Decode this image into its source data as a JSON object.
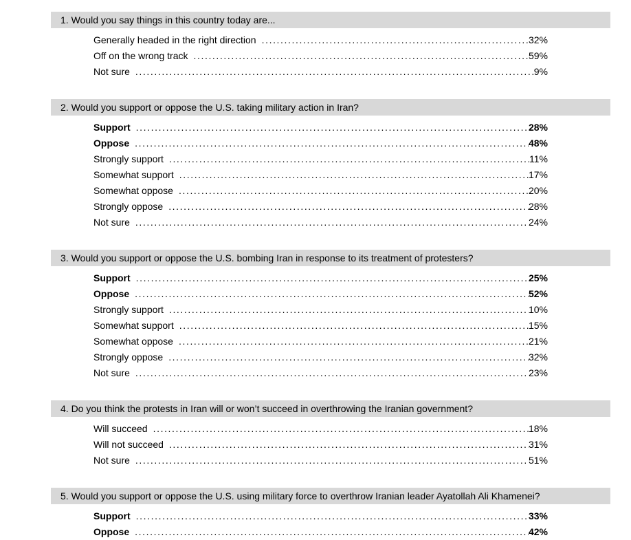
{
  "document": {
    "background_color": "#ffffff",
    "header_bar_color": "#d8d8d8",
    "text_color": "#000000"
  },
  "questions": [
    {
      "title": "1. Would you say things in this country today are...",
      "responses": [
        {
          "label": "Generally headed in the right direction",
          "value": "32%",
          "bold": false
        },
        {
          "label": "Off on the wrong track",
          "value": "59%",
          "bold": false
        },
        {
          "label": "Not sure",
          "value": "9%",
          "bold": false
        }
      ]
    },
    {
      "title": "2. Would you support or oppose the U.S. taking military action in Iran?",
      "responses": [
        {
          "label": "Support",
          "value": "28%",
          "bold": true
        },
        {
          "label": "Oppose",
          "value": "48%",
          "bold": true
        },
        {
          "label": "Strongly support",
          "value": "11%",
          "bold": false
        },
        {
          "label": "Somewhat support",
          "value": "17%",
          "bold": false
        },
        {
          "label": "Somewhat oppose",
          "value": "20%",
          "bold": false
        },
        {
          "label": "Strongly oppose",
          "value": "28%",
          "bold": false
        },
        {
          "label": "Not sure",
          "value": "24%",
          "bold": false
        }
      ]
    },
    {
      "title": "3. Would you support or oppose the U.S. bombing Iran in response to its treatment of protesters?",
      "responses": [
        {
          "label": "Support",
          "value": "25%",
          "bold": true
        },
        {
          "label": "Oppose",
          "value": "52%",
          "bold": true
        },
        {
          "label": "Strongly support",
          "value": "10%",
          "bold": false
        },
        {
          "label": "Somewhat support",
          "value": "15%",
          "bold": false
        },
        {
          "label": "Somewhat oppose",
          "value": "21%",
          "bold": false
        },
        {
          "label": "Strongly oppose",
          "value": "32%",
          "bold": false
        },
        {
          "label": "Not sure",
          "value": "23%",
          "bold": false
        }
      ]
    },
    {
      "title": "4. Do you think the protests in Iran will or won’t succeed in overthrowing the Iranian government?",
      "responses": [
        {
          "label": "Will succeed",
          "value": "18%",
          "bold": false
        },
        {
          "label": "Will not succeed",
          "value": "31%",
          "bold": false
        },
        {
          "label": "Not sure",
          "value": "51%",
          "bold": false
        }
      ]
    },
    {
      "title": "5. Would you support or oppose the U.S. using military force to overthrow Iranian leader Ayatollah Ali Khamenei?",
      "responses": [
        {
          "label": "Support",
          "value": "33%",
          "bold": true
        },
        {
          "label": "Oppose",
          "value": "42%",
          "bold": true
        }
      ]
    }
  ]
}
